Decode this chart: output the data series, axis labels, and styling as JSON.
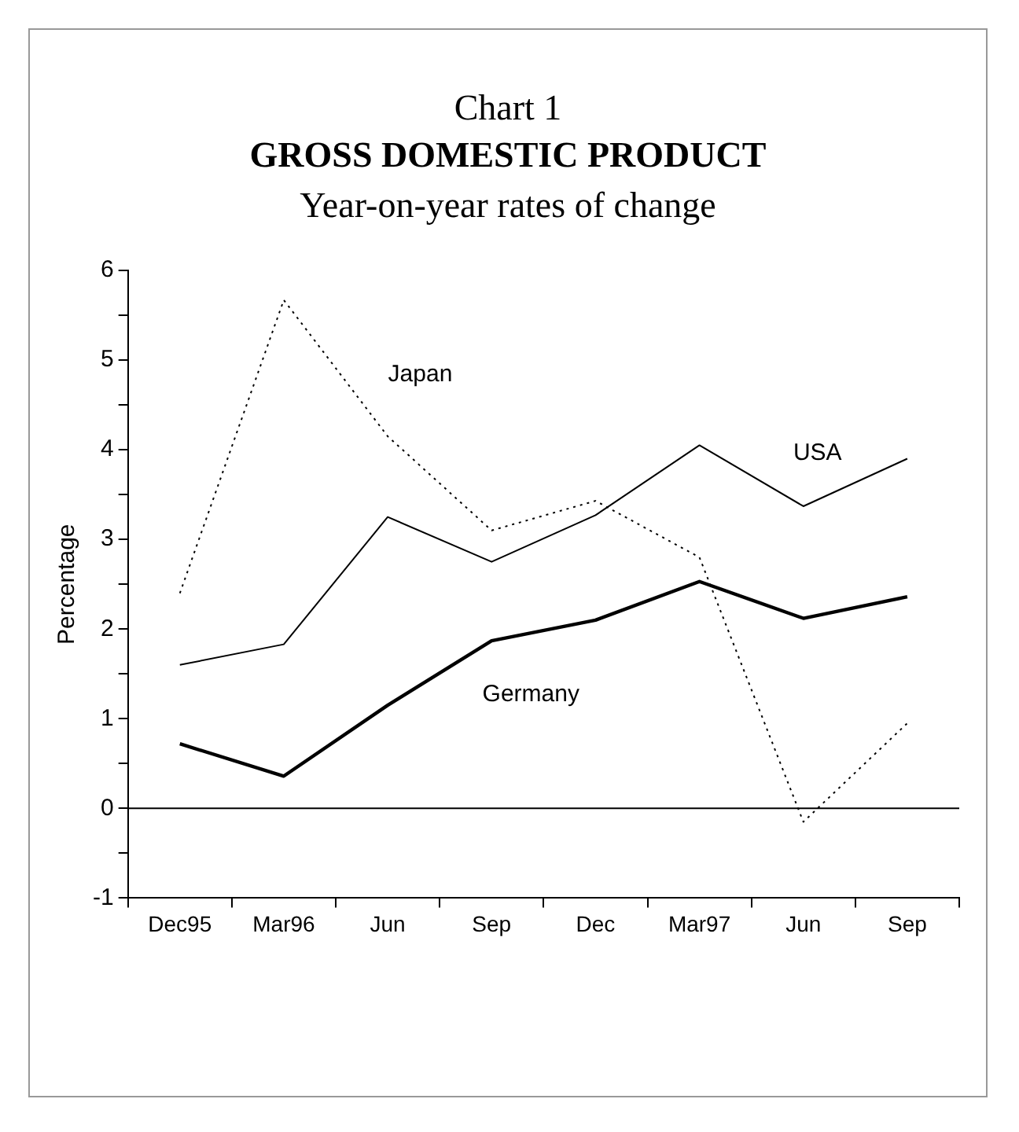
{
  "chart_data": {
    "type": "line",
    "annotations": [
      "Chart 1"
    ],
    "title": "GROSS DOMESTIC PRODUCT",
    "subtitle": "Year-on-year rates of change",
    "ylabel": "Percentage",
    "categories": [
      "Dec95",
      "Mar96",
      "Jun",
      "Sep",
      "Dec",
      "Mar97",
      "Jun",
      "Sep"
    ],
    "series": [
      {
        "name": "USA",
        "color": "#000000",
        "line_style": "solid",
        "values": [
          1.6,
          1.83,
          3.25,
          2.75,
          3.27,
          4.05,
          3.37,
          3.9
        ]
      },
      {
        "name": "Germany",
        "color": "#000000",
        "line_style": "solid",
        "values": [
          0.72,
          0.36,
          1.15,
          1.87,
          2.1,
          2.53,
          2.12,
          2.36
        ]
      },
      {
        "name": "Japan",
        "color": "#000000",
        "line_style": "dotted",
        "values": [
          2.4,
          5.67,
          4.15,
          3.1,
          3.43,
          2.8,
          -0.15,
          0.95
        ]
      }
    ],
    "ylim": [
      -1,
      6
    ],
    "yticks": [
      -1,
      {
        "value": -0.5,
        "label": null
      },
      0,
      {
        "value": 0.5,
        "label": null
      },
      1,
      {
        "value": 1.5,
        "label": null
      },
      2,
      {
        "value": 2.5,
        "label": null
      },
      3,
      {
        "value": 3.5,
        "label": null
      },
      4,
      {
        "value": 4.5,
        "label": null
      },
      5,
      {
        "value": 5.5,
        "label": null
      },
      6
    ],
    "ref_lines": [
      {
        "axis": "y",
        "value": 0,
        "color": "#000000"
      }
    ],
    "marker": "none",
    "grid": false,
    "legend": false
  }
}
